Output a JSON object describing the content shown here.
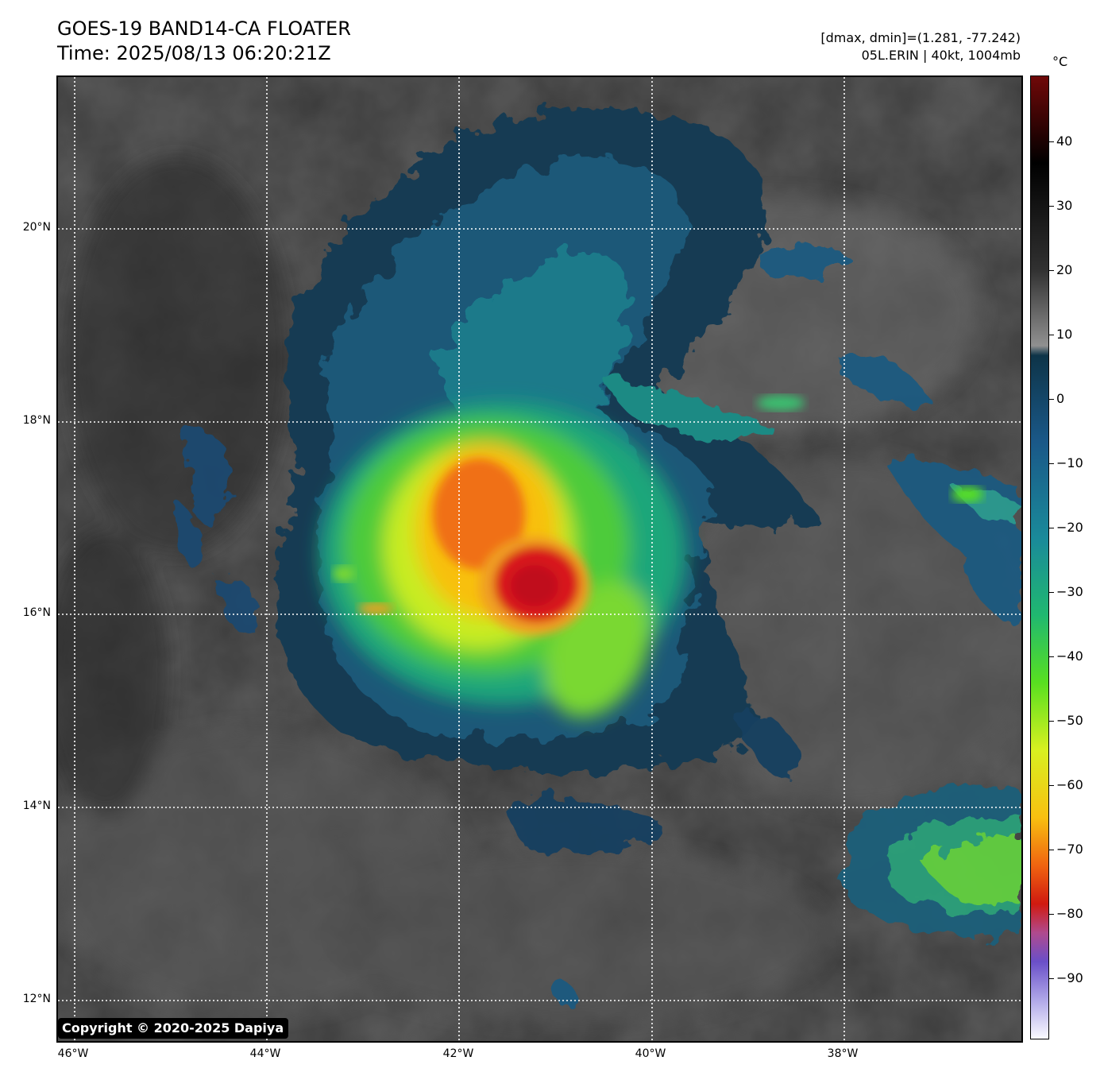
{
  "header": {
    "title_line1": "GOES-19 BAND14-CA FLOATER",
    "title_line2": "Time: 2025/08/13 06:20:21Z",
    "info_line1": "[dmax, dmin]=(1.281, -77.242)",
    "info_line2": "05L.ERIN | 40kt, 1004mb"
  },
  "map": {
    "lat_labels": [
      "20°N",
      "18°N",
      "16°N",
      "14°N",
      "12°N"
    ],
    "lon_labels": [
      "46°W",
      "44°W",
      "42°W",
      "40°W",
      "38°W"
    ],
    "copyright": "Copyright © 2020-2025 Dapiya",
    "storm_center": {
      "lat": 16.3,
      "lon": -41.2
    },
    "background_color": "#3c3c3c",
    "grid_color": "#ffffff"
  },
  "colorbar": {
    "unit": "°C",
    "tick_labels": [
      "40",
      "30",
      "20",
      "10",
      "0",
      "−10",
      "−20",
      "−30",
      "−40",
      "−50",
      "−60",
      "−70",
      "−80",
      "−90"
    ],
    "colors": [
      "#fafaff",
      "#b0a8e8",
      "#6a4fc8",
      "#b04a8e",
      "#d01a10",
      "#f06410",
      "#f8c010",
      "#d8f020",
      "#58e020",
      "#20b870",
      "#1a8a9a",
      "#1a5888",
      "#0e3448",
      "#909090",
      "#303030",
      "#000000",
      "#700808"
    ]
  }
}
